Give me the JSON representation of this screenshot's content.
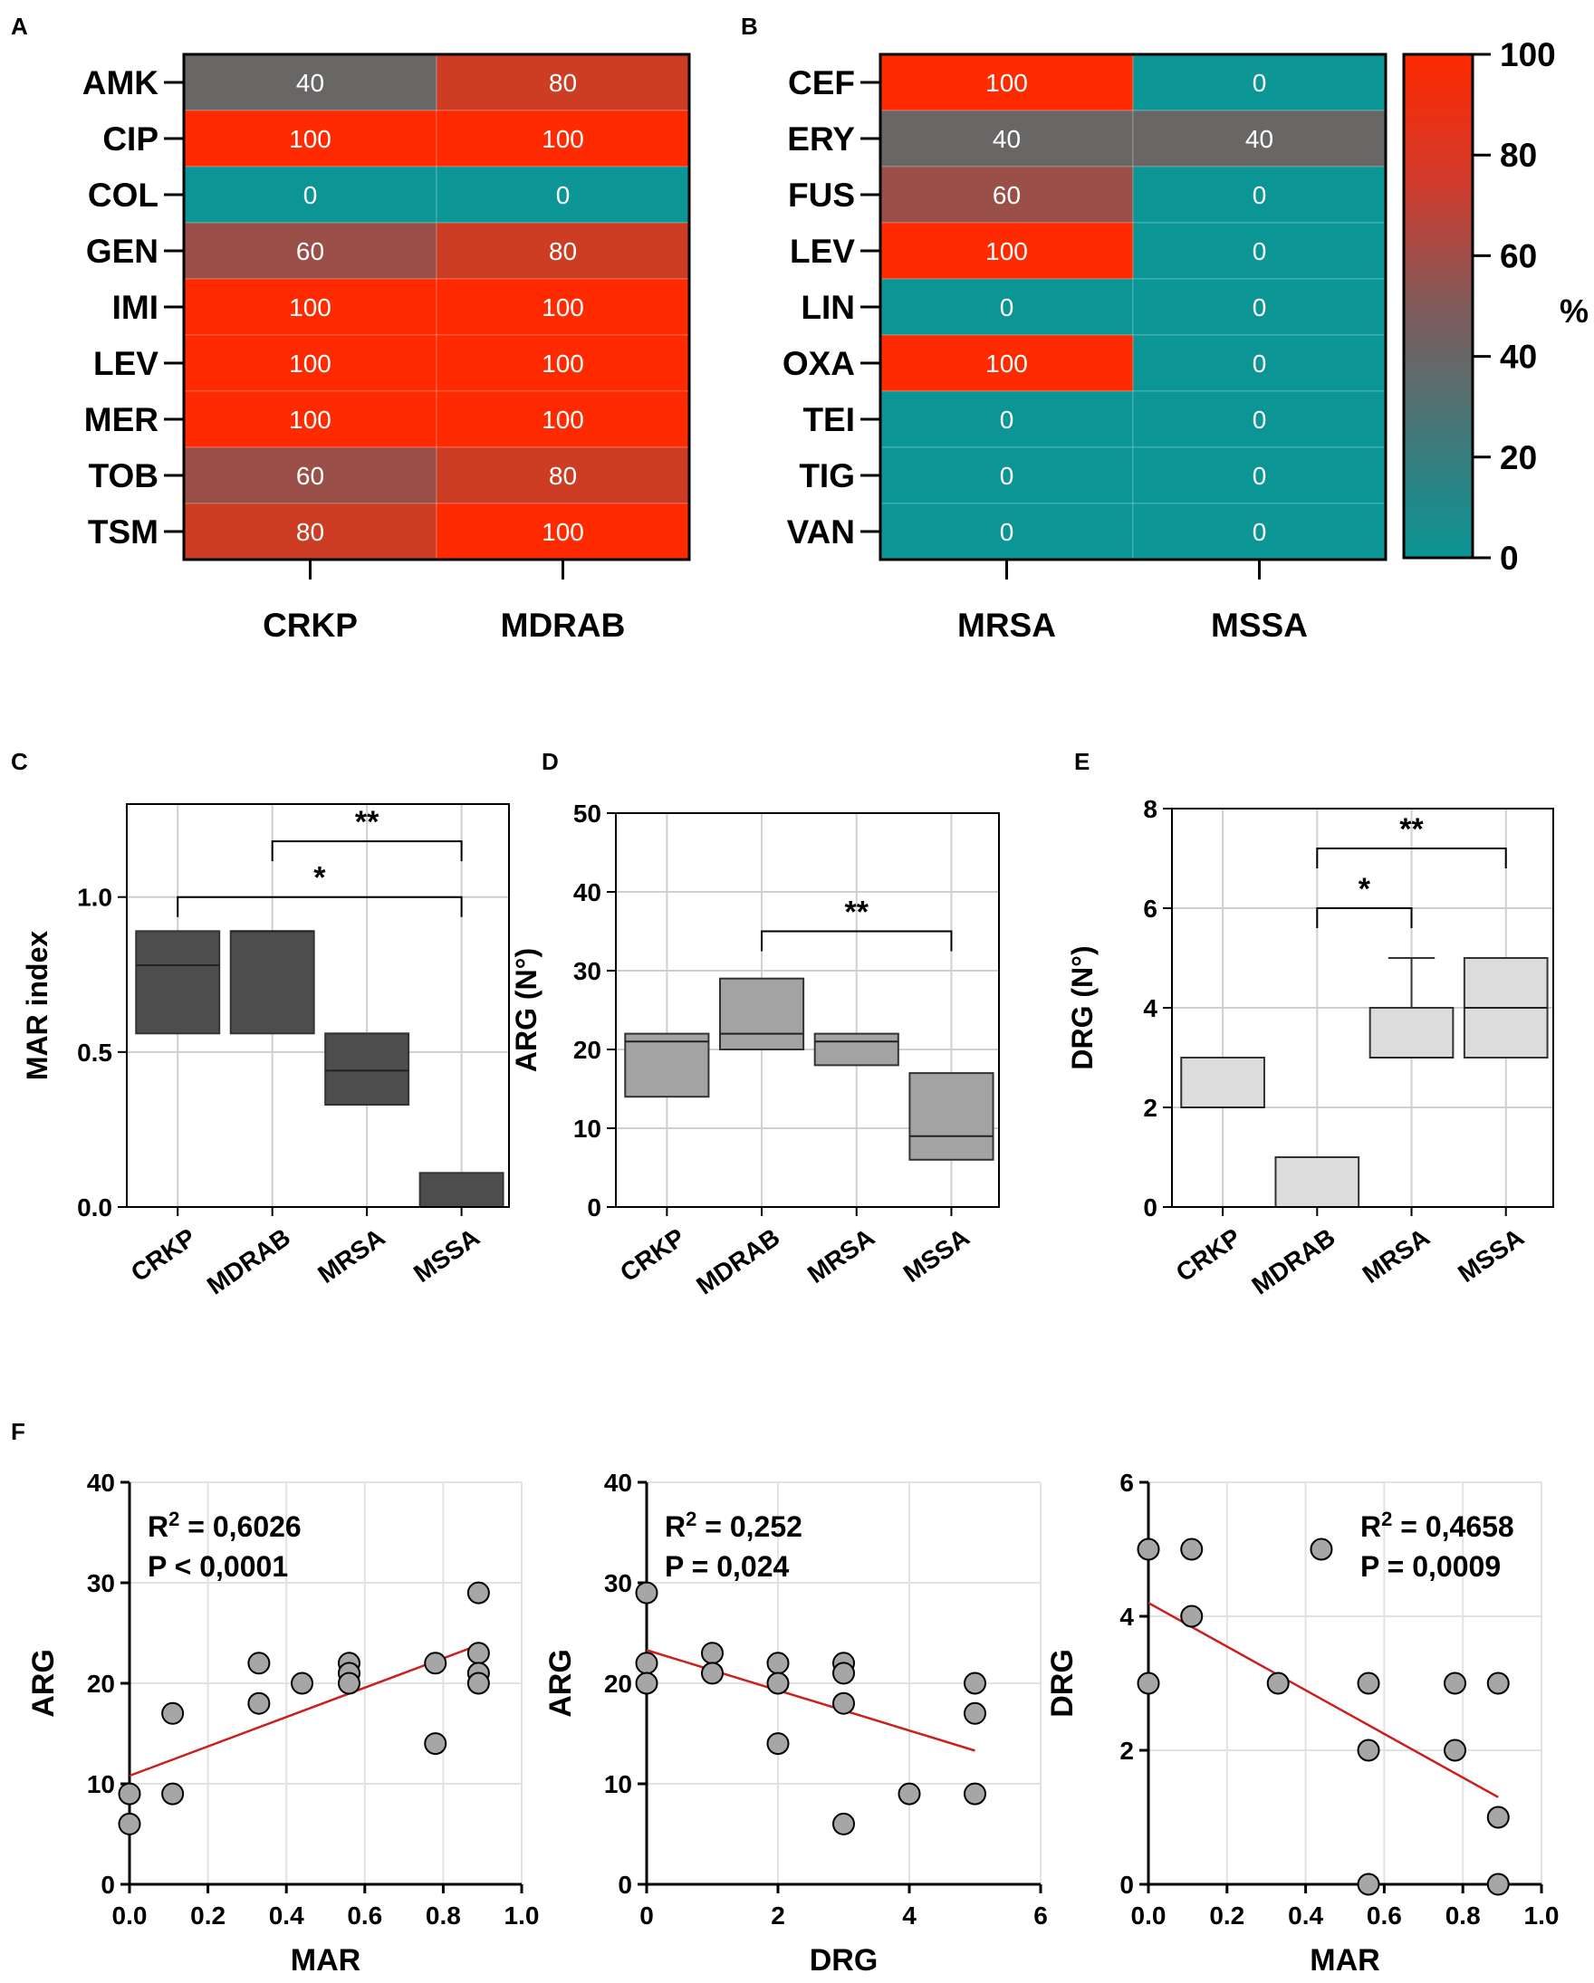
{
  "chart_data": [
    {
      "id": "A",
      "type": "heatmap",
      "panel_label": "A",
      "rows": [
        "AMK",
        "CIP",
        "COL",
        "GEN",
        "IMI",
        "LEV",
        "MER",
        "TOB",
        "TSM"
      ],
      "columns": [
        "CRKP",
        "MDRAB"
      ],
      "values": [
        [
          40,
          80
        ],
        [
          100,
          100
        ],
        [
          0,
          0
        ],
        [
          60,
          80
        ],
        [
          100,
          100
        ],
        [
          100,
          100
        ],
        [
          100,
          100
        ],
        [
          60,
          80
        ],
        [
          80,
          100
        ]
      ]
    },
    {
      "id": "B",
      "type": "heatmap",
      "panel_label": "B",
      "rows": [
        "CEF",
        "ERY",
        "FUS",
        "LEV",
        "LIN",
        "OXA",
        "TEI",
        "TIG",
        "VAN"
      ],
      "columns": [
        "MRSA",
        "MSSA"
      ],
      "values": [
        [
          100,
          0
        ],
        [
          40,
          40
        ],
        [
          60,
          0
        ],
        [
          100,
          0
        ],
        [
          0,
          0
        ],
        [
          100,
          0
        ],
        [
          0,
          0
        ],
        [
          0,
          0
        ],
        [
          0,
          0
        ]
      ],
      "colorbar": {
        "label": "%",
        "ticks": [
          0,
          20,
          40,
          60,
          80,
          100
        ],
        "range": [
          0,
          100
        ],
        "low_color": "#0b9595",
        "mid_color": "#815a5a",
        "high_color": "#ff2a00"
      }
    },
    {
      "id": "C",
      "type": "box",
      "panel_label": "C",
      "ylabel": "MAR index",
      "ylim": [
        0,
        1.3
      ],
      "yticks": [
        0,
        0.5,
        1
      ],
      "ytick_labels": [
        "0.0",
        "0.5",
        "1.0"
      ],
      "categories": [
        "CRKP",
        "MDRAB",
        "MRSA",
        "MSSA"
      ],
      "boxes": [
        {
          "q1": 0.56,
          "median": 0.78,
          "q3": 0.89
        },
        {
          "q1": 0.56,
          "median": 0.89,
          "q3": 0.89
        },
        {
          "q1": 0.33,
          "median": 0.44,
          "q3": 0.56
        },
        {
          "q1": 0.0,
          "median": 0.0,
          "q3": 0.11
        }
      ],
      "box_color": "#4d4d4d",
      "significance": [
        {
          "from": 1,
          "to": 3,
          "y": 1.18,
          "label": "**"
        },
        {
          "from": 0,
          "to": 3,
          "y": 1.0,
          "label": "*"
        }
      ]
    },
    {
      "id": "D",
      "type": "box",
      "panel_label": "D",
      "ylabel": "ARG (N°)",
      "ylim": [
        0,
        50
      ],
      "yticks": [
        0,
        10,
        20,
        30,
        40,
        50
      ],
      "ytick_labels": [
        "0",
        "10",
        "20",
        "30",
        "40",
        "50"
      ],
      "categories": [
        "CRKP",
        "MDRAB",
        "MRSA",
        "MSSA"
      ],
      "boxes": [
        {
          "q1": 14,
          "median": 21,
          "q3": 22
        },
        {
          "q1": 20,
          "median": 22,
          "q3": 29
        },
        {
          "q1": 18,
          "median": 21,
          "q3": 22
        },
        {
          "q1": 6,
          "median": 9,
          "q3": 17
        }
      ],
      "box_color": "#a3a3a3",
      "significance": [
        {
          "from": 1,
          "to": 3,
          "y": 35,
          "label": "**"
        }
      ]
    },
    {
      "id": "E",
      "type": "box",
      "panel_label": "E",
      "ylabel": "DRG (N°)",
      "ylim": [
        0,
        8
      ],
      "yticks": [
        0,
        2,
        4,
        6,
        8
      ],
      "ytick_labels": [
        "0",
        "2",
        "4",
        "6",
        "8"
      ],
      "categories": [
        "CRKP",
        "MDRAB",
        "MRSA",
        "MSSA"
      ],
      "boxes": [
        {
          "q1": 2,
          "median": 2,
          "q3": 3
        },
        {
          "q1": 0,
          "median": 0,
          "q3": 1
        },
        {
          "q1": 3,
          "median": 3,
          "q3": 4,
          "whisker_max": 5
        },
        {
          "q1": 3,
          "median": 4,
          "q3": 5
        }
      ],
      "box_color": "#dcdcdc",
      "significance": [
        {
          "from": 1,
          "to": 3,
          "y": 7.2,
          "label": "**"
        },
        {
          "from": 1,
          "to": 2,
          "y": 6.0,
          "label": "*"
        }
      ]
    },
    {
      "id": "F1",
      "type": "scatter",
      "panel_label": "F",
      "xlabel": "MAR",
      "ylabel": "ARG",
      "xlim": [
        0,
        1
      ],
      "ylim": [
        0,
        40
      ],
      "xticks": [
        0,
        0.2,
        0.4,
        0.6,
        0.8,
        1
      ],
      "xtick_labels": [
        "0.0",
        "0.2",
        "0.4",
        "0.6",
        "0.8",
        "1.0"
      ],
      "yticks": [
        0,
        10,
        20,
        30,
        40
      ],
      "ytick_labels": [
        "0",
        "10",
        "20",
        "30",
        "40"
      ],
      "x": [
        0,
        0,
        0.11,
        0.11,
        0.33,
        0.33,
        0.44,
        0.56,
        0.56,
        0.56,
        0.78,
        0.78,
        0.89,
        0.89,
        0.89,
        0.89
      ],
      "y": [
        9,
        6,
        17,
        9,
        22,
        18,
        20,
        22,
        21,
        20,
        22,
        14,
        29,
        23,
        21,
        20
      ],
      "fit": {
        "x0": 0,
        "y0": 10.8,
        "x1": 0.89,
        "y1": 23.8
      },
      "stat_r2_prefix": "R",
      "stat_r2_sup": "2",
      "stat_r2_value": " = 0,6026",
      "stat_p": "P < 0,0001",
      "stats_anchor": "top-left"
    },
    {
      "id": "F2",
      "type": "scatter",
      "xlabel": "DRG",
      "ylabel": "ARG",
      "xlim": [
        0,
        6
      ],
      "ylim": [
        0,
        40
      ],
      "xticks": [
        0,
        2,
        4,
        6
      ],
      "xtick_labels": [
        "0",
        "2",
        "4",
        "6"
      ],
      "yticks": [
        0,
        10,
        20,
        30,
        40
      ],
      "ytick_labels": [
        "0",
        "10",
        "20",
        "30",
        "40"
      ],
      "x": [
        0,
        0,
        0,
        1,
        1,
        2,
        2,
        2,
        3,
        3,
        3,
        3,
        4,
        5,
        5,
        5
      ],
      "y": [
        29,
        22,
        20,
        23,
        21,
        22,
        20,
        14,
        22,
        21,
        18,
        6,
        9,
        20,
        17,
        9
      ],
      "fit": {
        "x0": 0,
        "y0": 23.3,
        "x1": 5,
        "y1": 13.3
      },
      "stat_r2_prefix": "R",
      "stat_r2_sup": "2",
      "stat_r2_value": " = 0,252",
      "stat_p": "P = 0,024",
      "stats_anchor": "top-left"
    },
    {
      "id": "F3",
      "type": "scatter",
      "xlabel": "MAR",
      "ylabel": "DRG",
      "xlim": [
        0,
        1
      ],
      "ylim": [
        0,
        6
      ],
      "xticks": [
        0,
        0.2,
        0.4,
        0.6,
        0.8,
        1
      ],
      "xtick_labels": [
        "0.0",
        "0.2",
        "0.4",
        "0.6",
        "0.8",
        "1.0"
      ],
      "yticks": [
        0,
        2,
        4,
        6
      ],
      "ytick_labels": [
        "0",
        "2",
        "4",
        "6"
      ],
      "x": [
        0,
        0,
        0.11,
        0.11,
        0.33,
        0.44,
        0.56,
        0.56,
        0.56,
        0.78,
        0.78,
        0.89,
        0.89,
        0.89
      ],
      "y": [
        5,
        3,
        5,
        4,
        3,
        5,
        3,
        2,
        0,
        3,
        2,
        3,
        1,
        0
      ],
      "fit": {
        "x0": 0,
        "y0": 4.2,
        "x1": 0.89,
        "y1": 1.3
      },
      "stat_r2_prefix": "R",
      "stat_r2_sup": "2",
      "stat_r2_value": " = 0,4658",
      "stat_p": "P = 0,0009",
      "stats_anchor": "top-right"
    }
  ]
}
